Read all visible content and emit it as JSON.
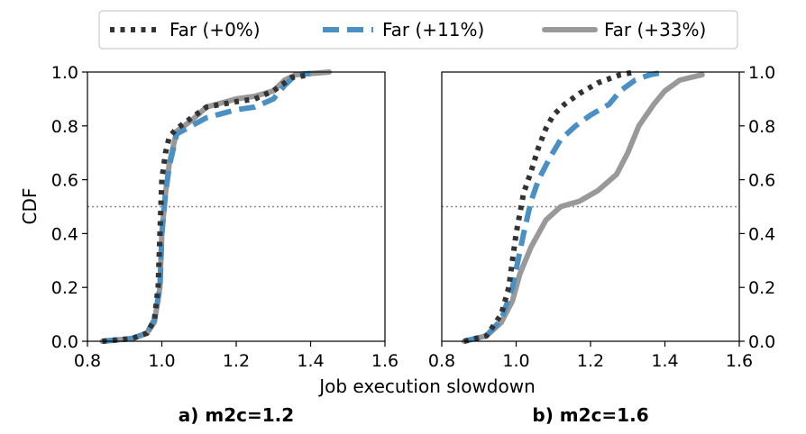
{
  "figure": {
    "ylabel": "CDF",
    "xlabel": "Job execution slowdown",
    "legend": {
      "placement": "top-center",
      "entries": [
        {
          "label": "Far (+0%)",
          "color": "#333333",
          "style": "dotted"
        },
        {
          "label": "Far (+11%)",
          "color": "#4a90c4",
          "style": "dashed"
        },
        {
          "label": "Far (+33%)",
          "color": "#999999",
          "style": "solid"
        }
      ]
    }
  },
  "chart_data": [
    {
      "type": "line",
      "caption": "a) m2c=1.2",
      "xlim": [
        0.8,
        1.6
      ],
      "ylim": [
        0.0,
        1.0
      ],
      "xticks": [
        "0.8",
        "1.0",
        "1.2",
        "1.4",
        "1.6"
      ],
      "yticks": [
        "0.0",
        "0.2",
        "0.4",
        "0.6",
        "0.8",
        "1.0"
      ],
      "ytick_side": "left",
      "reference_line": {
        "y": 0.5,
        "style": "dotted",
        "color": "#888888"
      },
      "series": [
        {
          "name": "Far (+0%)",
          "points": [
            [
              0.84,
              0.0
            ],
            [
              0.92,
              0.01
            ],
            [
              0.96,
              0.03
            ],
            [
              0.98,
              0.08
            ],
            [
              0.99,
              0.2
            ],
            [
              0.995,
              0.4
            ],
            [
              1.0,
              0.6
            ],
            [
              1.01,
              0.7
            ],
            [
              1.02,
              0.76
            ],
            [
              1.04,
              0.79
            ],
            [
              1.08,
              0.83
            ],
            [
              1.12,
              0.87
            ],
            [
              1.2,
              0.89
            ],
            [
              1.25,
              0.9
            ],
            [
              1.3,
              0.93
            ],
            [
              1.35,
              0.98
            ],
            [
              1.4,
              0.99
            ]
          ]
        },
        {
          "name": "Far (+11%)",
          "points": [
            [
              0.84,
              0.0
            ],
            [
              0.92,
              0.01
            ],
            [
              0.96,
              0.03
            ],
            [
              0.98,
              0.08
            ],
            [
              0.995,
              0.2
            ],
            [
              1.0,
              0.4
            ],
            [
              1.01,
              0.55
            ],
            [
              1.02,
              0.65
            ],
            [
              1.04,
              0.77
            ],
            [
              1.08,
              0.8
            ],
            [
              1.12,
              0.83
            ],
            [
              1.2,
              0.86
            ],
            [
              1.25,
              0.87
            ],
            [
              1.3,
              0.9
            ],
            [
              1.33,
              0.95
            ],
            [
              1.36,
              0.99
            ],
            [
              1.4,
              0.995
            ]
          ]
        },
        {
          "name": "Far (+33%)",
          "points": [
            [
              0.84,
              0.0
            ],
            [
              0.92,
              0.01
            ],
            [
              0.96,
              0.03
            ],
            [
              0.98,
              0.07
            ],
            [
              0.995,
              0.2
            ],
            [
              1.0,
              0.4
            ],
            [
              1.01,
              0.55
            ],
            [
              1.02,
              0.66
            ],
            [
              1.04,
              0.78
            ],
            [
              1.08,
              0.82
            ],
            [
              1.12,
              0.87
            ],
            [
              1.2,
              0.9
            ],
            [
              1.25,
              0.91
            ],
            [
              1.3,
              0.93
            ],
            [
              1.33,
              0.97
            ],
            [
              1.36,
              0.99
            ],
            [
              1.45,
              1.0
            ]
          ]
        }
      ]
    },
    {
      "type": "line",
      "caption": "b) m2c=1.6",
      "xlim": [
        0.8,
        1.6
      ],
      "ylim": [
        0.0,
        1.0
      ],
      "xticks": [
        "0.8",
        "1.0",
        "1.2",
        "1.4",
        "1.6"
      ],
      "yticks": [
        "0.0",
        "0.2",
        "0.4",
        "0.6",
        "0.8",
        "1.0"
      ],
      "ytick_side": "right",
      "reference_line": {
        "y": 0.5,
        "style": "dotted",
        "color": "#888888"
      },
      "series": [
        {
          "name": "Far (+0%)",
          "points": [
            [
              0.86,
              0.0
            ],
            [
              0.92,
              0.02
            ],
            [
              0.96,
              0.1
            ],
            [
              0.98,
              0.2
            ],
            [
              1.0,
              0.4
            ],
            [
              1.02,
              0.55
            ],
            [
              1.04,
              0.63
            ],
            [
              1.06,
              0.72
            ],
            [
              1.08,
              0.79
            ],
            [
              1.1,
              0.84
            ],
            [
              1.13,
              0.88
            ],
            [
              1.17,
              0.92
            ],
            [
              1.22,
              0.96
            ],
            [
              1.28,
              0.99
            ],
            [
              1.32,
              1.0
            ]
          ]
        },
        {
          "name": "Far (+11%)",
          "points": [
            [
              0.86,
              0.0
            ],
            [
              0.92,
              0.02
            ],
            [
              0.96,
              0.08
            ],
            [
              0.99,
              0.2
            ],
            [
              1.02,
              0.4
            ],
            [
              1.04,
              0.52
            ],
            [
              1.06,
              0.6
            ],
            [
              1.09,
              0.68
            ],
            [
              1.12,
              0.75
            ],
            [
              1.16,
              0.8
            ],
            [
              1.2,
              0.84
            ],
            [
              1.25,
              0.88
            ],
            [
              1.28,
              0.93
            ],
            [
              1.32,
              0.97
            ],
            [
              1.36,
              0.99
            ],
            [
              1.4,
              1.0
            ]
          ]
        },
        {
          "name": "Far (+33%)",
          "points": [
            [
              0.86,
              0.0
            ],
            [
              0.92,
              0.02
            ],
            [
              0.96,
              0.07
            ],
            [
              0.99,
              0.15
            ],
            [
              1.01,
              0.25
            ],
            [
              1.04,
              0.35
            ],
            [
              1.08,
              0.45
            ],
            [
              1.12,
              0.5
            ],
            [
              1.17,
              0.52
            ],
            [
              1.22,
              0.56
            ],
            [
              1.27,
              0.62
            ],
            [
              1.3,
              0.7
            ],
            [
              1.33,
              0.8
            ],
            [
              1.37,
              0.88
            ],
            [
              1.4,
              0.93
            ],
            [
              1.44,
              0.97
            ],
            [
              1.5,
              0.99
            ]
          ]
        }
      ]
    }
  ]
}
